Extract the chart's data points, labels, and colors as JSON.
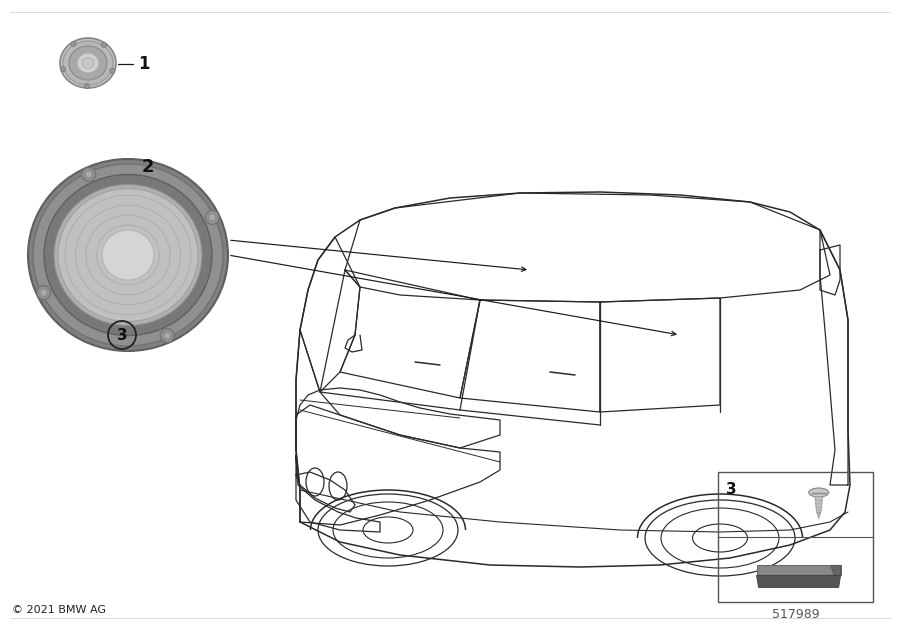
{
  "copyright": "© 2021 BMW AG",
  "diagram_number": "517989",
  "background_color": "#ffffff",
  "line_color": "#1a1a1a",
  "car_line_color": "#2a2a2a",
  "gray_light": "#d0d0d0",
  "gray_mid": "#b0b0b0",
  "gray_dark": "#888888",
  "gray_darker": "#666666"
}
